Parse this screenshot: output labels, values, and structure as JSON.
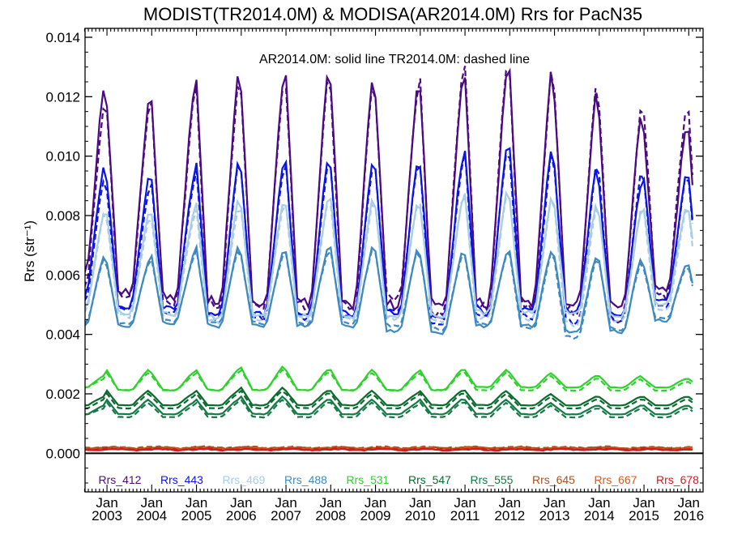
{
  "chart_data": {
    "type": "line",
    "title": "MODIST(TR2014.0M) & MODISA(AR2014.0M)  Rrs for PacN35",
    "ylabel": "Rrs (str⁻¹)",
    "annotation": "AR2014.0M: solid line   TR2014.0M: dashed line",
    "ylim": [
      -0.0013,
      0.0143
    ],
    "xlim": [
      2002.51,
      2016.32
    ],
    "yticks": [
      "0.000",
      "0.002",
      "0.004",
      "0.006",
      "0.008",
      "0.010",
      "0.012",
      "0.014"
    ],
    "ytick_values": [
      0,
      0.002,
      0.004,
      0.006,
      0.008,
      0.01,
      0.012,
      0.014
    ],
    "xticks": [
      {
        "month": "Jan",
        "year": "2003",
        "x": 2003
      },
      {
        "month": "Jan",
        "year": "2004",
        "x": 2004
      },
      {
        "month": "Jan",
        "year": "2005",
        "x": 2005
      },
      {
        "month": "Jan",
        "year": "2006",
        "x": 2006
      },
      {
        "month": "Jan",
        "year": "2007",
        "x": 2007
      },
      {
        "month": "Jan",
        "year": "2008",
        "x": 2008
      },
      {
        "month": "Jan",
        "year": "2009",
        "x": 2009
      },
      {
        "month": "Jan",
        "year": "2010",
        "x": 2010
      },
      {
        "month": "Jan",
        "year": "2011",
        "x": 2011
      },
      {
        "month": "Jan",
        "year": "2012",
        "x": 2012
      },
      {
        "month": "Jan",
        "year": "2013",
        "x": 2013
      },
      {
        "month": "Jan",
        "year": "2014",
        "x": 2014
      },
      {
        "month": "Jan",
        "year": "2015",
        "x": 2015
      },
      {
        "month": "Jan",
        "year": "2016",
        "x": 2016
      }
    ],
    "x_units": "year",
    "line_styles": {
      "AR2014.0M": "solid",
      "TR2014.0M": "dashed"
    },
    "series": [
      {
        "name": "Rrs_412",
        "color": "#4b0a82",
        "peaks": [
          0.0123,
          0.0117,
          0.0119,
          0.0127,
          0.0122,
          0.0126,
          0.0125,
          0.0121,
          0.0123,
          0.0128,
          0.0129,
          0.012,
          0.0113,
          0.0108
        ],
        "troughs": [
          0.0058,
          0.0052,
          0.005,
          0.0048,
          0.0048,
          0.0048,
          0.0048,
          0.0047,
          0.0047,
          0.0048,
          0.0048,
          0.0048,
          0.0047,
          0.0053
        ],
        "peaks_dashed": [
          0.0116,
          0.0114,
          0.0117,
          0.0123,
          0.0121,
          0.0124,
          0.0123,
          0.0119,
          0.0125,
          0.013,
          0.0127,
          0.0122,
          0.0116,
          0.0115
        ],
        "troughs_dashed": [
          0.0055,
          0.0051,
          0.0049,
          0.0047,
          0.0047,
          0.0047,
          0.0047,
          0.005,
          0.0044,
          0.0047,
          0.0047,
          0.0045,
          0.0043,
          0.0051
        ]
      },
      {
        "name": "Rrs_443",
        "color": "#0a14e6",
        "peaks": [
          0.0096,
          0.0092,
          0.0092,
          0.0098,
          0.0095,
          0.0097,
          0.0097,
          0.0096,
          0.0097,
          0.0102,
          0.0102,
          0.0096,
          0.009,
          0.0093
        ],
        "troughs": [
          0.0052,
          0.0048,
          0.0047,
          0.0045,
          0.0045,
          0.0045,
          0.0045,
          0.0045,
          0.0044,
          0.0046,
          0.0046,
          0.0046,
          0.0045,
          0.005
        ],
        "peaks_dashed": [
          0.0092,
          0.0088,
          0.009,
          0.0096,
          0.0094,
          0.0096,
          0.0095,
          0.0095,
          0.0096,
          0.0101,
          0.01,
          0.0096,
          0.0093,
          0.0092
        ],
        "troughs_dashed": [
          0.005,
          0.0047,
          0.0046,
          0.0044,
          0.0044,
          0.0044,
          0.0044,
          0.0046,
          0.0042,
          0.0045,
          0.0044,
          0.0042,
          0.0043,
          0.0048
        ]
      },
      {
        "name": "Rrs_469",
        "color": "#a8cde6",
        "peaks": [
          0.0081,
          0.008,
          0.008,
          0.0084,
          0.0083,
          0.0084,
          0.0085,
          0.0083,
          0.0083,
          0.0087,
          0.0086,
          0.0083,
          0.008,
          0.0082
        ],
        "troughs": [
          0.0048,
          0.0046,
          0.0046,
          0.0044,
          0.0045,
          0.0045,
          0.0045,
          0.0044,
          0.0045,
          0.0046,
          0.0046,
          0.0046,
          0.0045,
          0.0049
        ],
        "peaks_dashed": [
          0.008,
          0.0078,
          0.0078,
          0.0082,
          0.0082,
          0.0083,
          0.0083,
          0.0082,
          0.0084,
          0.0086,
          0.0085,
          0.0082,
          0.0081,
          0.0081
        ],
        "troughs_dashed": [
          0.0047,
          0.0045,
          0.0045,
          0.0043,
          0.0044,
          0.0044,
          0.0044,
          0.0044,
          0.0043,
          0.0044,
          0.0044,
          0.0042,
          0.0043,
          0.0047
        ]
      },
      {
        "name": "Rrs_488",
        "color": "#3e8ac0",
        "peaks": [
          0.0066,
          0.0064,
          0.0066,
          0.0069,
          0.0067,
          0.0068,
          0.0069,
          0.0068,
          0.0067,
          0.0067,
          0.0068,
          0.0066,
          0.0065,
          0.0063
        ],
        "troughs": [
          0.0042,
          0.0042,
          0.0043,
          0.0042,
          0.0042,
          0.0042,
          0.0042,
          0.004,
          0.004,
          0.0042,
          0.0042,
          0.004,
          0.004,
          0.0044
        ],
        "peaks_dashed": [
          0.0065,
          0.0063,
          0.0065,
          0.0068,
          0.0066,
          0.0067,
          0.0068,
          0.0067,
          0.0066,
          0.0066,
          0.0067,
          0.0065,
          0.0064,
          0.0062
        ],
        "troughs_dashed": [
          0.0043,
          0.0043,
          0.0044,
          0.0043,
          0.0043,
          0.0043,
          0.0043,
          0.0042,
          0.0041,
          0.0043,
          0.0041,
          0.0038,
          0.0041,
          0.0045
        ]
      },
      {
        "name": "Rrs_531",
        "color": "#2ed12e",
        "peaks": [
          0.0026,
          0.0028,
          0.0027,
          0.0028,
          0.0029,
          0.0028,
          0.0028,
          0.0027,
          0.0028,
          0.0028,
          0.0027,
          0.0026,
          0.0026,
          0.0025
        ],
        "troughs": [
          0.0022,
          0.0021,
          0.0021,
          0.0021,
          0.0021,
          0.0021,
          0.0021,
          0.0021,
          0.0021,
          0.0022,
          0.0022,
          0.0022,
          0.0022,
          0.0022
        ],
        "peaks_dashed": [
          0.0025,
          0.0027,
          0.0026,
          0.0027,
          0.0028,
          0.0027,
          0.0027,
          0.0026,
          0.0027,
          0.0027,
          0.0026,
          0.0025,
          0.0025,
          0.0024
        ],
        "troughs_dashed": [
          0.0022,
          0.0021,
          0.0021,
          0.0021,
          0.0021,
          0.0021,
          0.0021,
          0.0021,
          0.0021,
          0.0021,
          0.0021,
          0.0021,
          0.0021,
          0.0021
        ]
      },
      {
        "name": "Rrs_547",
        "color": "#0a6b2c",
        "peaks": [
          0.0019,
          0.0021,
          0.002,
          0.0021,
          0.0022,
          0.0021,
          0.0021,
          0.002,
          0.0021,
          0.0021,
          0.002,
          0.0019,
          0.0019,
          0.0019
        ],
        "troughs": [
          0.0016,
          0.0016,
          0.0016,
          0.0016,
          0.0016,
          0.0016,
          0.0016,
          0.0016,
          0.0016,
          0.0016,
          0.0016,
          0.0016,
          0.0016,
          0.0016
        ],
        "peaks_dashed": [
          0.0018,
          0.002,
          0.0019,
          0.002,
          0.0021,
          0.002,
          0.002,
          0.0019,
          0.002,
          0.002,
          0.0019,
          0.0018,
          0.0018,
          0.0018
        ],
        "troughs_dashed": [
          0.0015,
          0.0015,
          0.0015,
          0.0015,
          0.0015,
          0.0015,
          0.0015,
          0.0015,
          0.0015,
          0.0015,
          0.0015,
          0.0015,
          0.0015,
          0.0015
        ]
      },
      {
        "name": "Rrs_555",
        "color": "#157a45",
        "peaks": [
          0.0016,
          0.0018,
          0.0017,
          0.0018,
          0.0019,
          0.0018,
          0.0018,
          0.0017,
          0.0018,
          0.0018,
          0.0017,
          0.0016,
          0.0016,
          0.0016
        ],
        "troughs": [
          0.0013,
          0.0013,
          0.0013,
          0.0013,
          0.0013,
          0.0013,
          0.0013,
          0.0013,
          0.0013,
          0.0013,
          0.0013,
          0.0013,
          0.0013,
          0.0013
        ],
        "peaks_dashed": [
          0.0015,
          0.0017,
          0.0016,
          0.0017,
          0.0018,
          0.0017,
          0.0017,
          0.0016,
          0.0017,
          0.0017,
          0.0016,
          0.0015,
          0.0015,
          0.0015
        ],
        "troughs_dashed": [
          0.0013,
          0.0012,
          0.0012,
          0.0012,
          0.0012,
          0.0012,
          0.0012,
          0.0012,
          0.0012,
          0.0012,
          0.0012,
          0.0012,
          0.0012,
          0.0012
        ]
      },
      {
        "name": "Rrs_645",
        "color": "#a8501e",
        "base": 0.00018,
        "amp": 4e-05
      },
      {
        "name": "Rrs_667",
        "color": "#e0561a",
        "base": 0.00014,
        "amp": 4e-05
      },
      {
        "name": "Rrs_678",
        "color": "#cc1e1e",
        "base": 0.00012,
        "amp": 4e-05
      }
    ]
  }
}
